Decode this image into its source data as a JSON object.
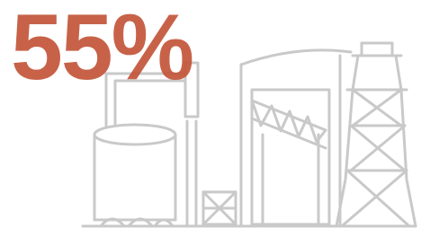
{
  "headline": "55%"
}
